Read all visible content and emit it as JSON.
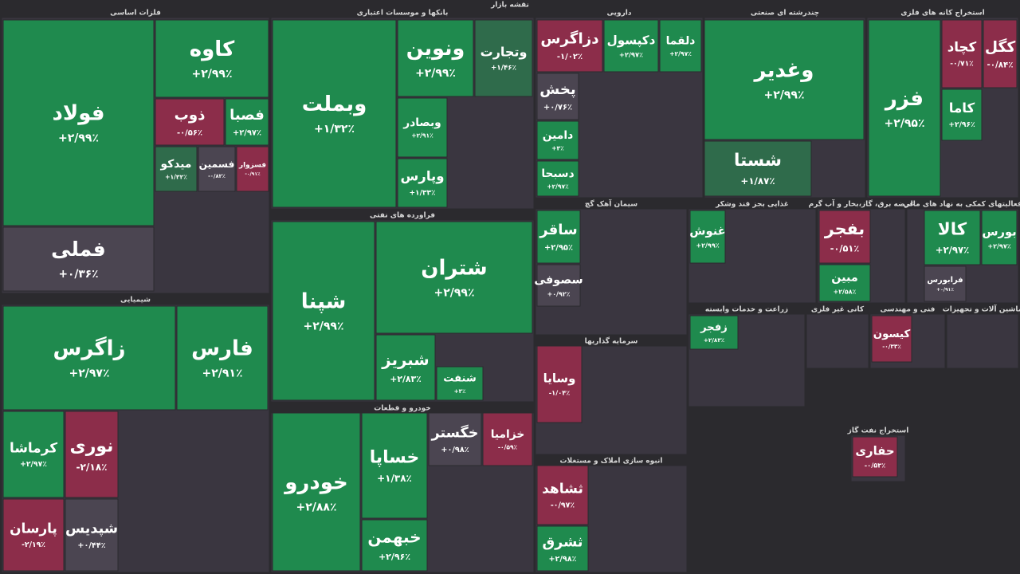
{
  "chart_data": {
    "type": "treemap",
    "title": "نقشه بازار",
    "sectors": [
      {
        "name": "فلزات اساسی",
        "tiles": [
          {
            "name": "فولاد",
            "value": 2.99,
            "label": "+۲/۹۹٪",
            "color": "#1f8a4e"
          },
          {
            "name": "کاوه",
            "value": 2.99,
            "label": "+۲/۹۹٪",
            "color": "#1f8a4e"
          },
          {
            "name": "فملی",
            "value": 0.36,
            "label": "+۰/۳۶٪",
            "color": "#4b4551"
          },
          {
            "name": "ذوب",
            "value": -0.56,
            "label": "-۰/۵۶٪",
            "color": "#8c2d4a"
          },
          {
            "name": "فصبا",
            "value": 2.97,
            "label": "+۲/۹۷٪",
            "color": "#1f8a4e"
          },
          {
            "name": "میدکو",
            "value": 1.32,
            "label": "+۱/۳۲٪",
            "color": "#2f6b4b"
          },
          {
            "name": "فسمین",
            "value": -0.82,
            "label": "-۰/۸۲٪",
            "color": "#4b4551"
          },
          {
            "name": "فسزوار",
            "value": -0.91,
            "label": "-۰/۹۱٪",
            "color": "#8c2d4a"
          }
        ]
      },
      {
        "name": "بانکها و موسسات اعتباری",
        "tiles": [
          {
            "name": "وبملت",
            "value": 1.32,
            "label": "+۱/۳۲٪",
            "color": "#1f8a4e"
          },
          {
            "name": "ونوین",
            "value": 2.99,
            "label": "+۲/۹۹٪",
            "color": "#1f8a4e"
          },
          {
            "name": "وتجارت",
            "value": 1.46,
            "label": "+۱/۴۶٪",
            "color": "#2f6b4b"
          },
          {
            "name": "وبصادر",
            "value": 2.91,
            "label": "+۲/۹۱٪",
            "color": "#1f8a4e"
          },
          {
            "name": "وپارس",
            "value": 1.33,
            "label": "+۱/۳۳٪",
            "color": "#1f8a4e"
          }
        ]
      },
      {
        "name": "دارویی",
        "tiles": [
          {
            "name": "دزاگرس",
            "value": -1.02,
            "label": "-۱/۰۲٪",
            "color": "#8c2d4a"
          },
          {
            "name": "دکپسول",
            "value": 2.97,
            "label": "+۲/۹۷٪",
            "color": "#1f8a4e"
          },
          {
            "name": "دلقما",
            "value": 2.97,
            "label": "+۲/۹۷٪",
            "color": "#1f8a4e"
          },
          {
            "name": "پخش",
            "value": 0.76,
            "label": "+۰/۷۶٪",
            "color": "#4b4551"
          },
          {
            "name": "دامین",
            "value": 3,
            "label": "+۳٪",
            "color": "#1f8a4e"
          },
          {
            "name": "دسبحا",
            "value": 2.97,
            "label": "+۲/۹۷٪",
            "color": "#1f8a4e"
          }
        ]
      },
      {
        "name": "چندرشته ای صنعتی",
        "tiles": [
          {
            "name": "وغدیر",
            "value": 2.99,
            "label": "+۲/۹۹٪",
            "color": "#1f8a4e"
          },
          {
            "name": "شستا",
            "value": 1.87,
            "label": "+۱/۸۷٪",
            "color": "#2f6b4b"
          }
        ]
      },
      {
        "name": "استخراج کانه های فلزی",
        "tiles": [
          {
            "name": "فزر",
            "value": 2.95,
            "label": "+۲/۹۵٪",
            "color": "#1f8a4e"
          },
          {
            "name": "کچاد",
            "value": -0.71,
            "label": "-۰/۷۱٪",
            "color": "#8c2d4a"
          },
          {
            "name": "کگل",
            "value": -0.84,
            "label": "-۰/۸۴٪",
            "color": "#8c2d4a"
          },
          {
            "name": "کاما",
            "value": 2.96,
            "label": "+۲/۹۶٪",
            "color": "#1f8a4e"
          }
        ]
      },
      {
        "name": "شیمیایی",
        "tiles": [
          {
            "name": "زاگرس",
            "value": 2.97,
            "label": "+۲/۹۷٪",
            "color": "#1f8a4e"
          },
          {
            "name": "فارس",
            "value": 2.91,
            "label": "+۲/۹۱٪",
            "color": "#1f8a4e"
          },
          {
            "name": "کرماشا",
            "value": 2.97,
            "label": "+۲/۹۷٪",
            "color": "#1f8a4e"
          },
          {
            "name": "نوری",
            "value": -2.18,
            "label": "-۲/۱۸٪",
            "color": "#8c2d4a"
          },
          {
            "name": "پارسان",
            "value": -2.19,
            "label": "-۲/۱۹٪",
            "color": "#8c2d4a"
          },
          {
            "name": "شپدیس",
            "value": 0.44,
            "label": "+۰/۴۴٪",
            "color": "#4b4551"
          }
        ]
      },
      {
        "name": "فراورده های نفتی",
        "tiles": [
          {
            "name": "شپنا",
            "value": 2.99,
            "label": "+۲/۹۹٪",
            "color": "#1f8a4e"
          },
          {
            "name": "شتران",
            "value": 2.99,
            "label": "+۲/۹۹٪",
            "color": "#1f8a4e"
          },
          {
            "name": "شبریز",
            "value": 2.83,
            "label": "+۲/۸۳٪",
            "color": "#1f8a4e"
          },
          {
            "name": "شنفت",
            "value": 3,
            "label": "+۳٪",
            "color": "#1f8a4e"
          }
        ]
      },
      {
        "name": "خودرو و قطعات",
        "tiles": [
          {
            "name": "خودرو",
            "value": 2.88,
            "label": "+۲/۸۸٪",
            "color": "#1f8a4e"
          },
          {
            "name": "خساپا",
            "value": 1.38,
            "label": "+۱/۳۸٪",
            "color": "#1f8a4e"
          },
          {
            "name": "خگستر",
            "value": 0.98,
            "label": "+۰/۹۸٪",
            "color": "#4b4551"
          },
          {
            "name": "خزامیا",
            "value": -0.59,
            "label": "-۰/۵۹٪",
            "color": "#8c2d4a"
          },
          {
            "name": "خبهمن",
            "value": 2.96,
            "label": "+۲/۹۶٪",
            "color": "#1f8a4e"
          }
        ]
      },
      {
        "name": "سیمان آهک گچ",
        "tiles": [
          {
            "name": "ساقر",
            "value": 2.95,
            "label": "+۲/۹۵٪",
            "color": "#1f8a4e"
          },
          {
            "name": "سصوفی",
            "value": 0.92,
            "label": "+۰/۹۲٪",
            "color": "#4b4551"
          }
        ]
      },
      {
        "name": "سرمایه گذاریها",
        "tiles": [
          {
            "name": "وسایا",
            "value": -1.04,
            "label": "-۱/۰۴٪",
            "color": "#8c2d4a"
          }
        ]
      },
      {
        "name": "انبوه سازی املاک و مستغلات",
        "tiles": [
          {
            "name": "ثشاهد",
            "value": -0.97,
            "label": "-۰/۹۷٪",
            "color": "#8c2d4a"
          },
          {
            "name": "ثشرق",
            "value": 2.98,
            "label": "+۲/۹۸٪",
            "color": "#1f8a4e"
          }
        ]
      },
      {
        "name": "غذایی بجز قند وشکر",
        "tiles": [
          {
            "name": "غنوش",
            "value": 2.99,
            "label": "+۲/۹۹٪",
            "color": "#1f8a4e"
          }
        ]
      },
      {
        "name": "عرضه برق، گاز،بخار و آب گرم",
        "tiles": [
          {
            "name": "بفجر",
            "value": -0.51,
            "label": "-۰/۵۱٪",
            "color": "#8c2d4a"
          },
          {
            "name": "مبین",
            "value": 2.58,
            "label": "+۲/۵۸٪",
            "color": "#1f8a4e"
          }
        ]
      },
      {
        "name": "فعالیتهای کمکی به نهاد های مالی",
        "tiles": [
          {
            "name": "کالا",
            "value": 2.97,
            "label": "+۲/۹۷٪",
            "color": "#1f8a4e"
          },
          {
            "name": "بورس",
            "value": 2.97,
            "label": "+۲/۹۷٪",
            "color": "#1f8a4e"
          },
          {
            "name": "فرابورس",
            "value": 0.91,
            "label": "+۰/۹۱٪",
            "color": "#4b4551"
          }
        ]
      },
      {
        "name": "زراعت و خدمات وابسته",
        "tiles": [
          {
            "name": "زفجر",
            "value": 2.83,
            "label": "+۲/۸۳٪",
            "color": "#1f8a4e"
          }
        ]
      },
      {
        "name": "کانی غیر فلزی",
        "tiles": []
      },
      {
        "name": "فنی و مهندسی",
        "tiles": [
          {
            "name": "کیسون",
            "value": -0.33,
            "label": "-۰/۳۳٪",
            "color": "#8c2d4a"
          }
        ]
      },
      {
        "name": "ماشین آلات و تجهیزات",
        "tiles": []
      },
      {
        "name": "استخراج نفت گاز",
        "tiles": [
          {
            "name": "حفاری",
            "value": -0.53,
            "label": "-۰/۵۳٪",
            "color": "#8c2d4a"
          }
        ]
      }
    ]
  }
}
